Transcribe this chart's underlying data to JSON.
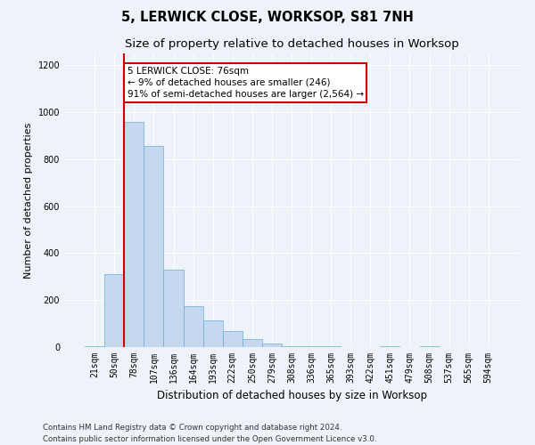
{
  "title": "5, LERWICK CLOSE, WORKSOP, S81 7NH",
  "subtitle": "Size of property relative to detached houses in Worksop",
  "xlabel": "Distribution of detached houses by size in Worksop",
  "ylabel": "Number of detached properties",
  "footer": "Contains HM Land Registry data © Crown copyright and database right 2024.\nContains public sector information licensed under the Open Government Licence v3.0.",
  "bar_labels": [
    "21sqm",
    "50sqm",
    "78sqm",
    "107sqm",
    "136sqm",
    "164sqm",
    "193sqm",
    "222sqm",
    "250sqm",
    "279sqm",
    "308sqm",
    "336sqm",
    "365sqm",
    "393sqm",
    "422sqm",
    "451sqm",
    "479sqm",
    "508sqm",
    "537sqm",
    "565sqm",
    "594sqm"
  ],
  "bar_values": [
    5,
    310,
    960,
    855,
    330,
    175,
    115,
    70,
    35,
    15,
    5,
    5,
    5,
    0,
    0,
    5,
    0,
    5,
    0,
    0,
    0
  ],
  "bar_color": "#c5d8f0",
  "bar_edge_color": "#6aaed6",
  "bar_width": 1.0,
  "property_line_bin": 2,
  "property_line_color": "#cc0000",
  "annotation_text": "5 LERWICK CLOSE: 76sqm\n← 9% of detached houses are smaller (246)\n91% of semi-detached houses are larger (2,564) →",
  "annotation_box_color": "#ffffff",
  "annotation_box_edge_color": "#cc0000",
  "ylim": [
    0,
    1250
  ],
  "yticks": [
    0,
    200,
    400,
    600,
    800,
    1000,
    1200
  ],
  "bg_color": "#eef2f9",
  "plot_bg_color": "#eef2f9",
  "title_fontsize": 10.5,
  "subtitle_fontsize": 9.5,
  "xlabel_fontsize": 8.5,
  "ylabel_fontsize": 8.0,
  "tick_fontsize": 7.0,
  "footer_fontsize": 6.2,
  "annotation_fontsize": 7.5
}
